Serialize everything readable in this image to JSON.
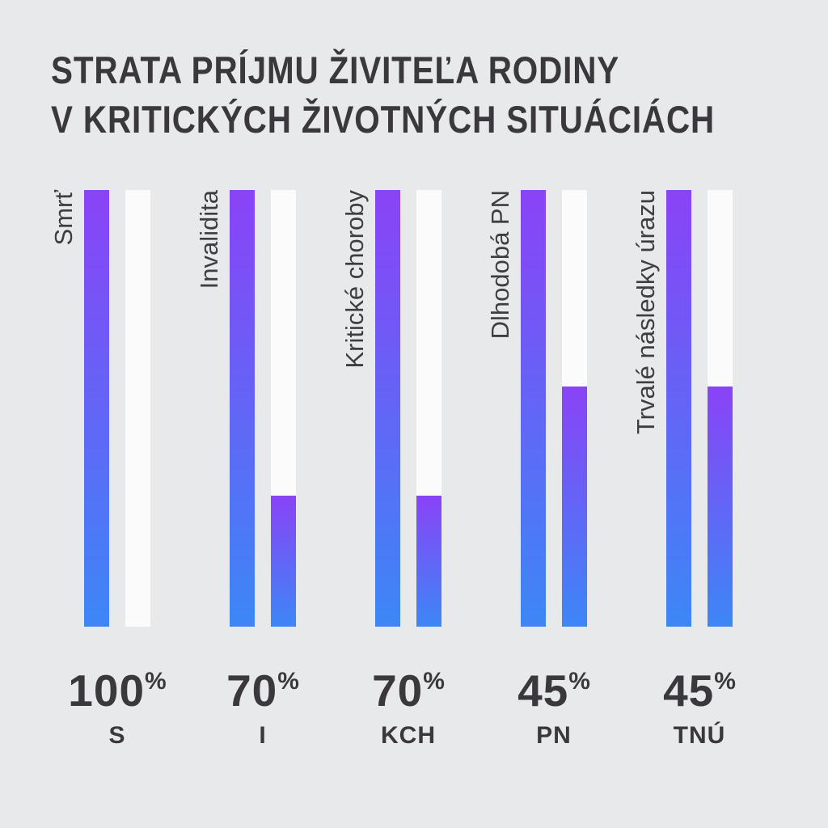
{
  "title": {
    "line1": "STRATA PRÍJMU ŽIVITEĽA RODINY",
    "line2": "V KRITICKÝCH ŽIVOTNÝCH SITUÁCIÁCH"
  },
  "percent_symbol": "%",
  "groups": [
    {
      "label": "Smrť",
      "abbr": "S",
      "percent": "100",
      "remaining_pct": 0
    },
    {
      "label": "Invalidita",
      "abbr": "I",
      "percent": "70",
      "remaining_pct": 30
    },
    {
      "label": "Kritické choroby",
      "abbr": "KCH",
      "percent": "70",
      "remaining_pct": 30
    },
    {
      "label": "Dlhodobá PN",
      "abbr": "PN",
      "percent": "45",
      "remaining_pct": 55
    },
    {
      "label": "Trvalé následky úrazu",
      "abbr": "TNÚ",
      "percent": "45",
      "remaining_pct": 55
    }
  ],
  "chart_data": {
    "type": "bar",
    "title": "STRATA PRÍJMU ŽIVITEĽA RODINY V KRITICKÝCH ŽIVOTNÝCH SITUÁCIÁCH",
    "categories": [
      "Smrť",
      "Invalidita",
      "Kritické choroby",
      "Dlhodobá PN",
      "Trvalé následky úrazu"
    ],
    "category_abbreviations": [
      "S",
      "I",
      "KCH",
      "PN",
      "TNÚ"
    ],
    "series": [
      {
        "name": "full-bar",
        "values": [
          100,
          100,
          100,
          100,
          100
        ]
      },
      {
        "name": "remaining-bar",
        "values": [
          0,
          30,
          30,
          55,
          55
        ]
      }
    ],
    "income_loss_labels": [
      "100%",
      "70%",
      "70%",
      "45%",
      "45%"
    ],
    "ylim": [
      0,
      100
    ],
    "grid": false,
    "legend": "none",
    "colors": {
      "background": "#e8e9eb",
      "bar_gradient_top": "#8a43f6",
      "bar_gradient_bottom": "#3c87f6",
      "empty_bar": "#fbfbfc",
      "text": "#3a383c"
    }
  }
}
